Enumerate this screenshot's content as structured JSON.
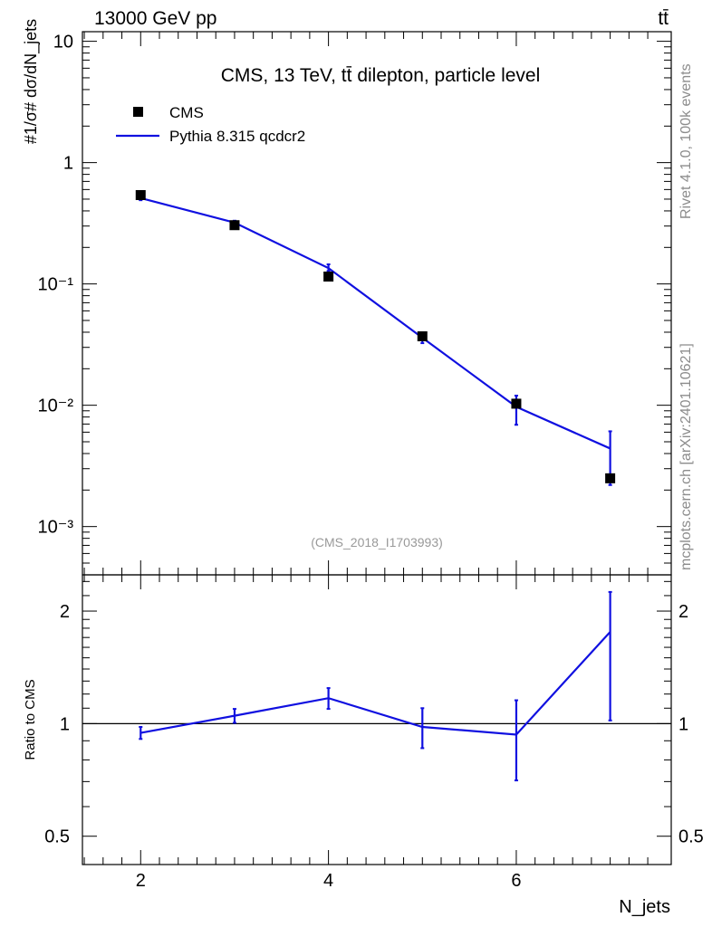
{
  "header": {
    "left": "13000 GeV pp",
    "right": "tt̄"
  },
  "side_labels": {
    "rivet": "Rivet 4.1.0,  100k events",
    "mcplots": "mcplots.cern.ch [arXiv:2401.10621]"
  },
  "chart_data": [
    {
      "type": "scatter",
      "panel": "main",
      "title": "CMS, 13 TeV, tt̄ dilepton, particle level",
      "annotation": "(CMS_2018_I1703993)",
      "ylabel": "#1/σ# dσ/dN_jets",
      "yscale": "log",
      "ylim": [
        0.0004,
        12
      ],
      "xlim": [
        1.38,
        7.65
      ],
      "grid": false,
      "legend_position": "top-left",
      "y_tick_labels": [
        "10⁻³",
        "10⁻²",
        "10⁻¹",
        "1",
        "10"
      ],
      "series": [
        {
          "name": "CMS",
          "style": "markers",
          "color": "#000000",
          "x": [
            2,
            3,
            4,
            5,
            6,
            7
          ],
          "y": [
            0.54,
            0.305,
            0.115,
            0.037,
            0.0103,
            0.0025
          ]
        },
        {
          "name": "Pythia 8.315 qcdcr2",
          "style": "line",
          "color": "#1010e0",
          "x": [
            2,
            3,
            4,
            5,
            6,
            7
          ],
          "y": [
            0.51,
            0.32,
            0.135,
            0.036,
            0.0097,
            0.0044
          ],
          "err_low": [
            0.02,
            0.012,
            0.007,
            0.0035,
            0.0028,
            0.0022
          ],
          "err_high": [
            0.02,
            0.012,
            0.01,
            0.0035,
            0.0023,
            0.0017
          ]
        }
      ]
    },
    {
      "type": "line",
      "panel": "ratio",
      "ylabel": "Ratio to CMS",
      "xlabel": "N_jets",
      "yscale": "log",
      "ylim": [
        0.42,
        2.5
      ],
      "xlim": [
        1.38,
        7.65
      ],
      "x_tick_labels": [
        "2",
        "4",
        "6"
      ],
      "y_tick_labels": [
        "0.5",
        "1",
        "2"
      ],
      "reference_line": 1,
      "series": [
        {
          "name": "Pythia 8.315 qcdcr2",
          "color": "#1010e0",
          "x": [
            2,
            3,
            4,
            5,
            6,
            7
          ],
          "y": [
            0.945,
            1.05,
            1.17,
            0.98,
            0.935,
            1.76
          ],
          "err_low": [
            0.035,
            0.045,
            0.075,
            0.12,
            0.23,
            0.74
          ],
          "err_high": [
            0.035,
            0.045,
            0.075,
            0.12,
            0.22,
            0.49
          ]
        }
      ]
    }
  ]
}
